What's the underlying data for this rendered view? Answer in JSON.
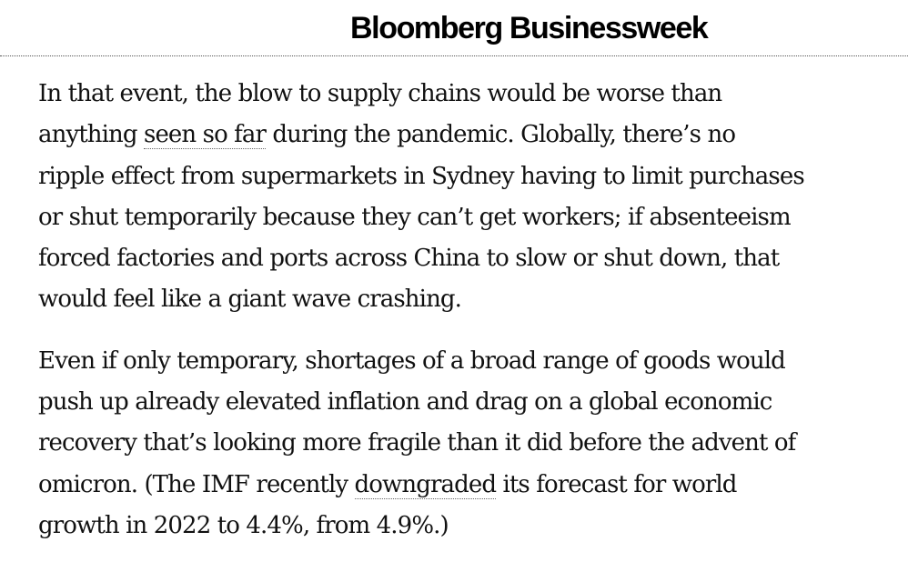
{
  "header": {
    "brand": "Bloomberg Businessweek"
  },
  "article": {
    "paragraphs": [
      {
        "lines": [
          {
            "text": "In that event, the blow to supply chains would be worse than"
          },
          {
            "before": "anything ",
            "link": "seen so far",
            "after": " during the pandemic. Globally, there’s no"
          },
          {
            "text": "ripple effect from supermarkets in Sydney having to limit purchases"
          },
          {
            "text": "or shut temporarily because they can’t get workers; if absenteeism"
          },
          {
            "text": "forced factories and ports across China to slow or shut down, that"
          },
          {
            "text": "would feel like a giant wave crashing."
          }
        ]
      },
      {
        "lines": [
          {
            "text": "Even if only temporary, shortages of a broad range of goods would"
          },
          {
            "text": "push up already elevated inflation and drag on a global economic"
          },
          {
            "text": "recovery that’s looking more fragile than it did before the advent of"
          },
          {
            "before": "omicron. (The IMF recently ",
            "link": "downgraded",
            "after": " its forecast for world"
          },
          {
            "text": "growth in 2022 to 4.4%, from 4.9%.)"
          }
        ]
      }
    ]
  }
}
